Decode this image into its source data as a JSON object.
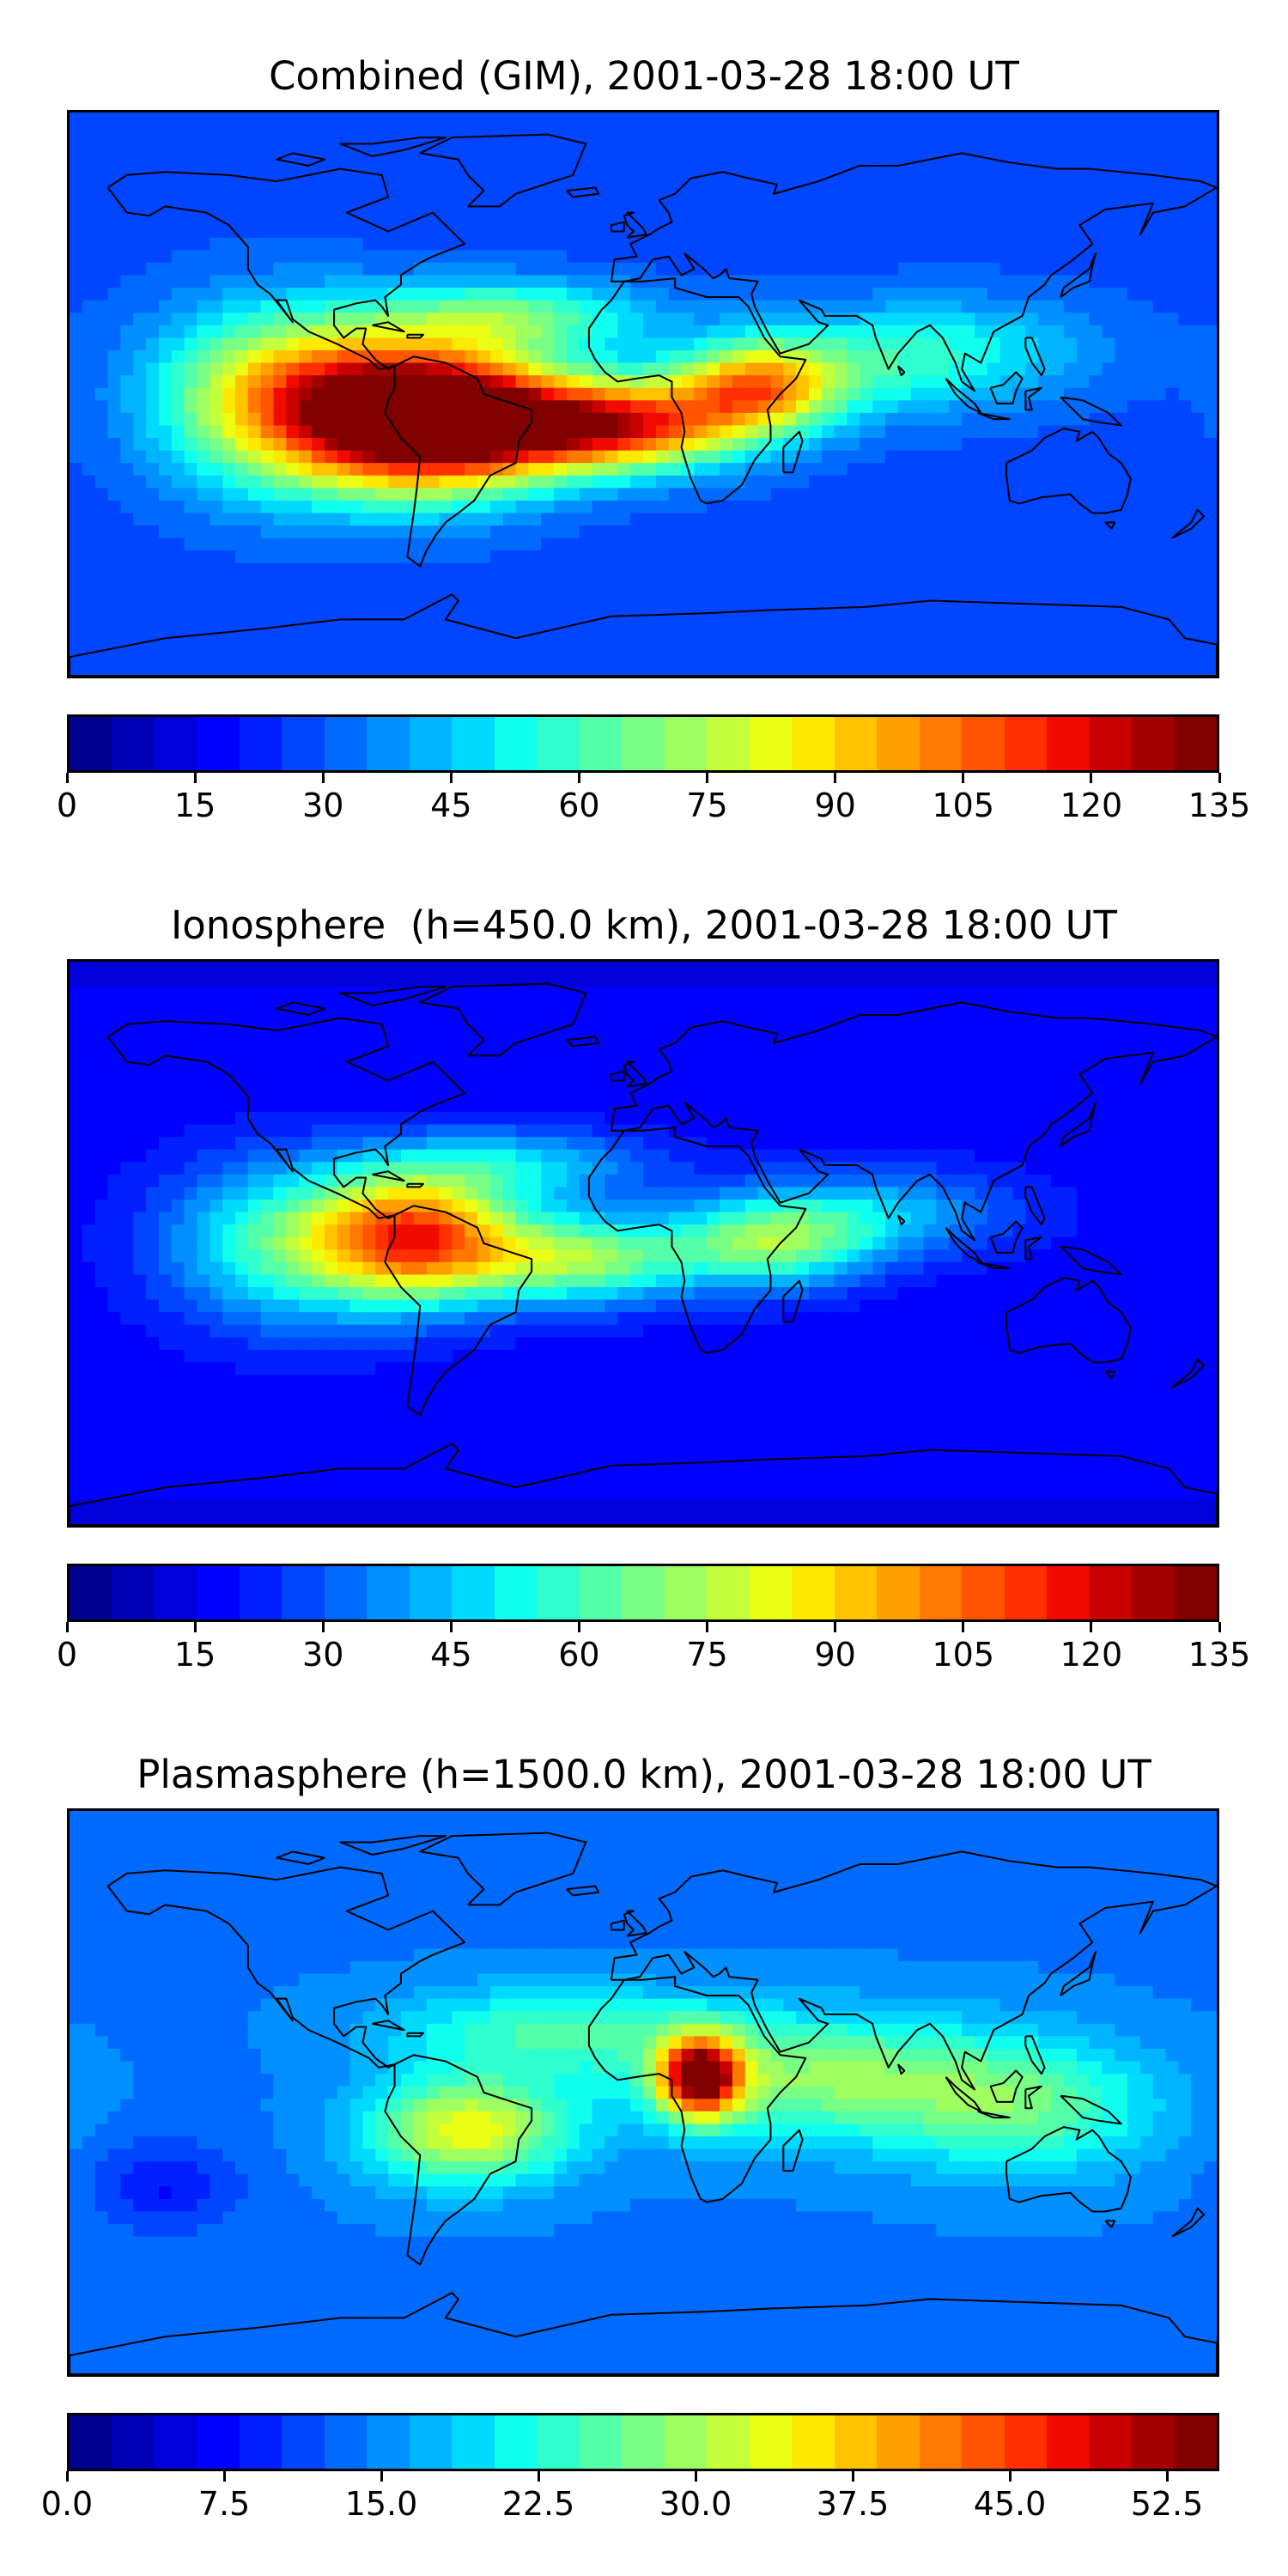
{
  "figure": {
    "description": "Three global TEC-style maps with colorbars"
  },
  "colors": [
    "#00008f",
    "#0000b4",
    "#0000db",
    "#0000ff",
    "#0020ff",
    "#0045ff",
    "#006aff",
    "#0090ff",
    "#00b4ff",
    "#00daff",
    "#10ffee",
    "#30ffce",
    "#55ffaa",
    "#7aff85",
    "#9fff60",
    "#c4ff3b",
    "#eaff15",
    "#ffe900",
    "#ffc300",
    "#ff9f00",
    "#ff7900",
    "#ff5500",
    "#ff2f00",
    "#f00a00",
    "#c80000",
    "#a30000",
    "#800000"
  ],
  "chart_data": [
    {
      "type": "heatmap",
      "title": "Combined (GIM), 2001-03-28 18:00 UT",
      "colorbar": {
        "min": 0,
        "max": 135,
        "ticks": [
          "0",
          "15",
          "30",
          "45",
          "60",
          "75",
          "90",
          "105",
          "120",
          "135"
        ]
      },
      "background_level": 28,
      "blobs": [
        {
          "lon": -60,
          "lat": -8,
          "level": 128,
          "sx": 26,
          "sy": 15
        },
        {
          "lon": -10,
          "lat": -10,
          "level": 115,
          "sx": 28,
          "sy": 10
        },
        {
          "lon": -90,
          "lat": -5,
          "level": 90,
          "sx": 28,
          "sy": 18
        },
        {
          "lon": -120,
          "lat": 0,
          "level": 65,
          "sx": 26,
          "sy": 20
        },
        {
          "lon": 35,
          "lat": 2,
          "level": 90,
          "sx": 18,
          "sy": 10
        },
        {
          "lon": 70,
          "lat": 10,
          "level": 52,
          "sx": 30,
          "sy": 12
        },
        {
          "lon": -40,
          "lat": 25,
          "level": 62,
          "sx": 30,
          "sy": 8
        },
        {
          "lon": 110,
          "lat": 15,
          "level": 42,
          "sx": 30,
          "sy": 12
        }
      ]
    },
    {
      "type": "heatmap",
      "title": "Ionosphere  (h=450.0 km), 2001-03-28 18:00 UT",
      "colorbar": {
        "min": 0,
        "max": 135,
        "ticks": [
          "0",
          "15",
          "30",
          "45",
          "60",
          "75",
          "90",
          "105",
          "120",
          "135"
        ]
      },
      "background_level": 17,
      "blobs": [
        {
          "lon": -70,
          "lat": 2,
          "level": 98,
          "sx": 22,
          "sy": 14
        },
        {
          "lon": -20,
          "lat": -5,
          "level": 70,
          "sx": 25,
          "sy": 10
        },
        {
          "lon": -110,
          "lat": 0,
          "level": 60,
          "sx": 28,
          "sy": 18
        },
        {
          "lon": 40,
          "lat": 0,
          "level": 65,
          "sx": 22,
          "sy": 10
        },
        {
          "lon": 75,
          "lat": 10,
          "level": 42,
          "sx": 30,
          "sy": 10
        },
        {
          "lon": -40,
          "lat": 25,
          "level": 45,
          "sx": 30,
          "sy": 8
        }
      ]
    },
    {
      "type": "heatmap",
      "title": "Plasmasphere (h=1500.0 km), 2001-03-28 18:00 UT",
      "colorbar": {
        "min": 0,
        "max": 55,
        "ticks": [
          "0.0",
          "7.5",
          "15.0",
          "22.5",
          "30.0",
          "37.5",
          "45.0",
          "52.5"
        ]
      },
      "background_level": 14,
      "blobs": [
        {
          "lon": 18,
          "lat": 5,
          "level": 52,
          "sx": 9,
          "sy": 9
        },
        {
          "lon": -55,
          "lat": -12,
          "level": 34,
          "sx": 22,
          "sy": 12
        },
        {
          "lon": 55,
          "lat": 5,
          "level": 28,
          "sx": 40,
          "sy": 14
        },
        {
          "lon": 120,
          "lat": -5,
          "level": 25,
          "sx": 30,
          "sy": 15
        },
        {
          "lon": -30,
          "lat": 20,
          "level": 24,
          "sx": 35,
          "sy": 10
        },
        {
          "lon": -150,
          "lat": -30,
          "level": 8,
          "sx": 16,
          "sy": 10
        }
      ]
    }
  ]
}
